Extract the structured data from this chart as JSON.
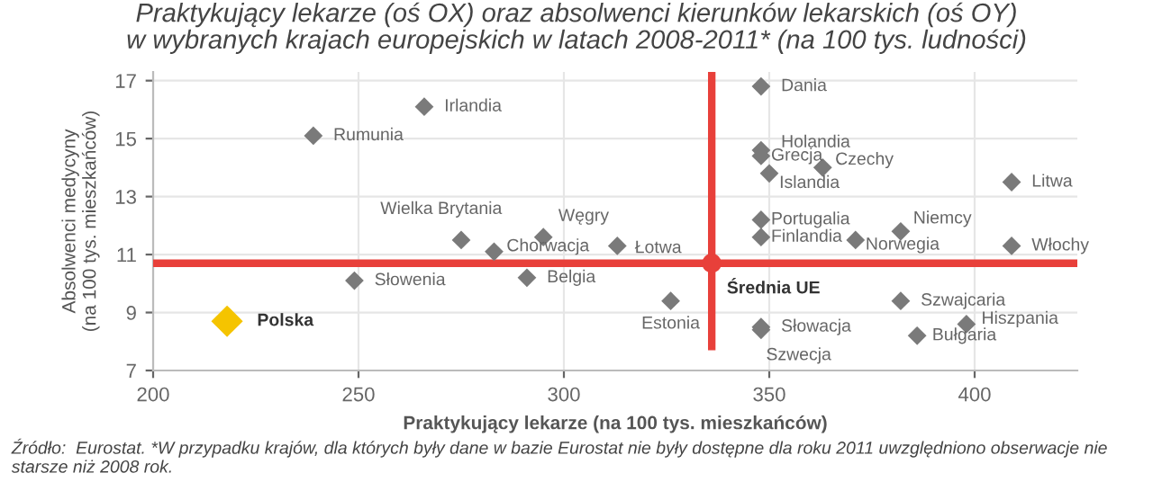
{
  "chart_data": {
    "type": "scatter",
    "title": "Praktykujący lekarze (oś OX) oraz absolwenci kierunków lekarskich (oś OY)\nw wybranych krajach europejskich w latach 2008-2011* (na 100 tys. ludności)",
    "xlabel": "Praktykujący lekarze (na 100 tys. mieszkańców)",
    "ylabel": "Absolwenci medycyny\n(na 100 tys. mieszkańców)",
    "xlim": [
      200,
      425
    ],
    "xticks": [
      200,
      250,
      300,
      350,
      400
    ],
    "ylim": [
      7,
      17.3
    ],
    "yticks": [
      7,
      9,
      11,
      13,
      15,
      17
    ],
    "grid": true,
    "marker": "diamond",
    "legend": false,
    "series": [
      {
        "name": "Rumunia",
        "color": "#7a7a7a",
        "x": [
          239
        ],
        "values": [
          15.1
        ]
      },
      {
        "name": "Irlandia",
        "color": "#7a7a7a",
        "x": [
          266
        ],
        "values": [
          16.1
        ]
      },
      {
        "name": "Wielka Brytania",
        "color": "#7a7a7a",
        "x": [
          275
        ],
        "values": [
          11.5
        ]
      },
      {
        "name": "Chorwacja",
        "color": "#7a7a7a",
        "x": [
          283
        ],
        "values": [
          11.1
        ]
      },
      {
        "name": "Węgry",
        "color": "#7a7a7a",
        "x": [
          295
        ],
        "values": [
          11.6
        ]
      },
      {
        "name": "Łotwa",
        "color": "#7a7a7a",
        "x": [
          313
        ],
        "values": [
          11.3
        ]
      },
      {
        "name": "Dania",
        "color": "#7a7a7a",
        "x": [
          348
        ],
        "values": [
          16.8
        ]
      },
      {
        "name": "Holandia",
        "color": "#7a7a7a",
        "x": [
          348
        ],
        "values": [
          14.6
        ]
      },
      {
        "name": "Grecja",
        "color": "#7a7a7a",
        "x": [
          348
        ],
        "values": [
          14.4
        ]
      },
      {
        "name": "Islandia",
        "color": "#7a7a7a",
        "x": [
          350
        ],
        "values": [
          13.8
        ]
      },
      {
        "name": "Czechy",
        "color": "#7a7a7a",
        "x": [
          363
        ],
        "values": [
          14.0
        ]
      },
      {
        "name": "Litwa",
        "color": "#7a7a7a",
        "x": [
          409
        ],
        "values": [
          13.5
        ]
      },
      {
        "name": "Portugalia",
        "color": "#7a7a7a",
        "x": [
          348
        ],
        "values": [
          12.2
        ]
      },
      {
        "name": "Finlandia",
        "color": "#7a7a7a",
        "x": [
          348
        ],
        "values": [
          11.6
        ]
      },
      {
        "name": "Norwegia",
        "color": "#7a7a7a",
        "x": [
          371
        ],
        "values": [
          11.5
        ]
      },
      {
        "name": "Niemcy",
        "color": "#7a7a7a",
        "x": [
          382
        ],
        "values": [
          11.8
        ]
      },
      {
        "name": "Włochy",
        "color": "#7a7a7a",
        "x": [
          409
        ],
        "values": [
          11.3
        ]
      },
      {
        "name": "Słowenia",
        "color": "#7a7a7a",
        "x": [
          249
        ],
        "values": [
          10.1
        ]
      },
      {
        "name": "Belgia",
        "color": "#7a7a7a",
        "x": [
          291
        ],
        "values": [
          10.2
        ]
      },
      {
        "name": "Polska",
        "color": "#f5c400",
        "x": [
          218
        ],
        "values": [
          8.7
        ]
      },
      {
        "name": "Estonia",
        "color": "#7a7a7a",
        "x": [
          326
        ],
        "values": [
          9.4
        ]
      },
      {
        "name": "Szwajcaria",
        "color": "#7a7a7a",
        "x": [
          382
        ],
        "values": [
          9.4
        ]
      },
      {
        "name": "Słowacja",
        "color": "#7a7a7a",
        "x": [
          348
        ],
        "values": [
          8.5
        ]
      },
      {
        "name": "Szwecja",
        "color": "#7a7a7a",
        "x": [
          348
        ],
        "values": [
          8.4
        ]
      },
      {
        "name": "Bułgaria",
        "color": "#7a7a7a",
        "x": [
          386
        ],
        "values": [
          8.2
        ]
      },
      {
        "name": "Hiszpania",
        "color": "#7a7a7a",
        "x": [
          398
        ],
        "values": [
          8.6
        ]
      },
      {
        "name": "Średnia UE",
        "color": "#e8403a",
        "x": [
          336
        ],
        "values": [
          10.7
        ],
        "marker": "circle"
      }
    ],
    "ref_lines": [
      {
        "axis": "y",
        "value": 10.7,
        "color": "#e8403a"
      },
      {
        "axis": "x",
        "value": 336,
        "color": "#e8403a"
      }
    ],
    "annotations": [
      "Źródło:  Eurostat. *W przypadku krajów, dla których były dane w bazie Eurostat nie były dostępne dla roku 2011 uwzględniono obserwacje nie starsze niż 2008 rok."
    ]
  }
}
